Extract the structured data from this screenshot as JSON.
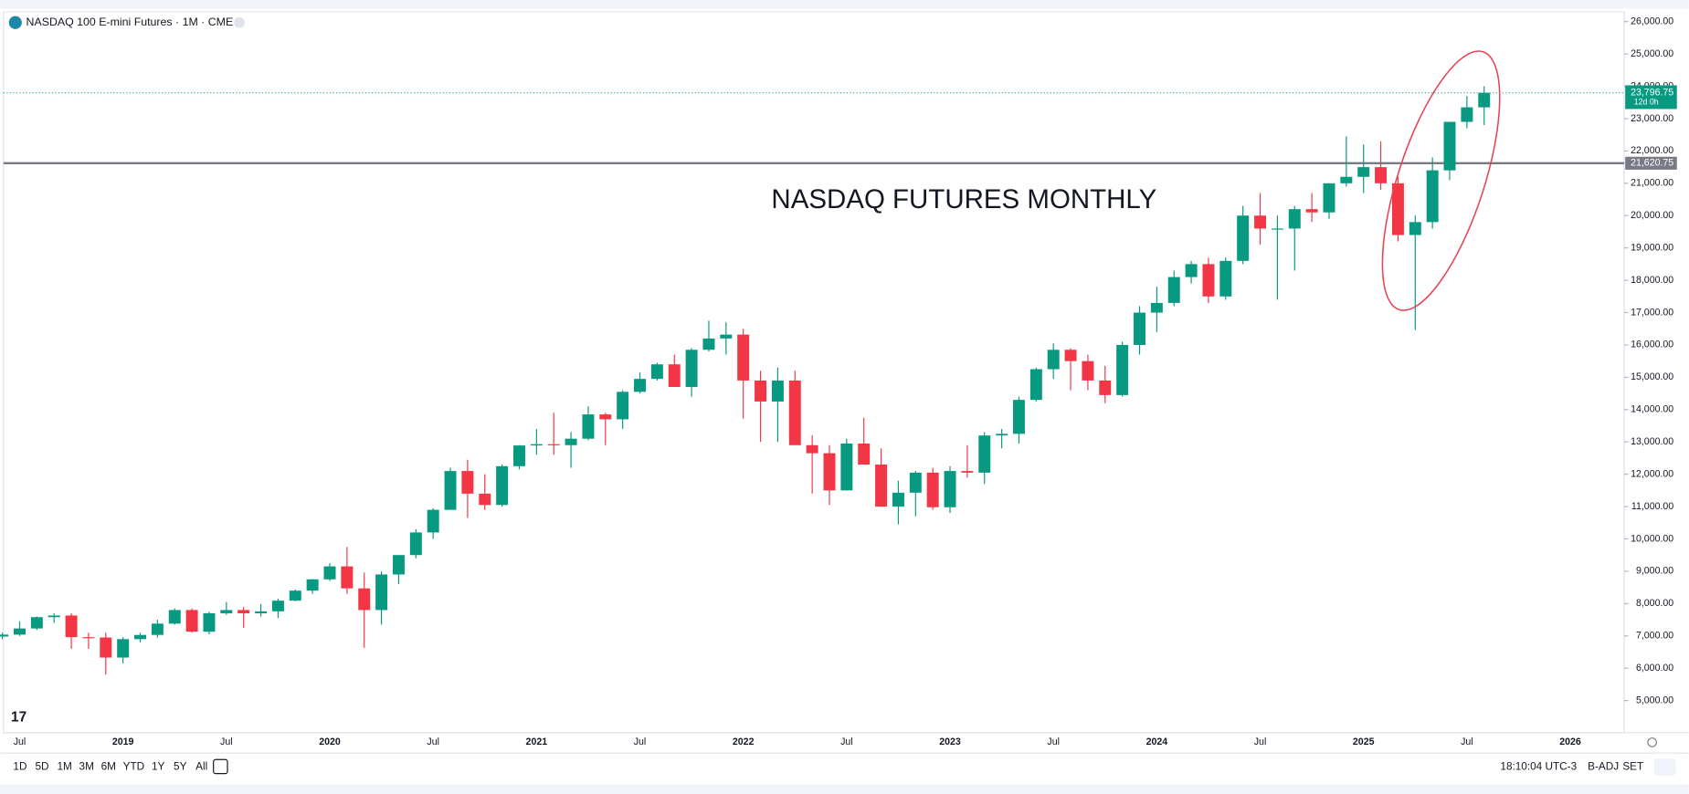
{
  "chart_data": {
    "type": "candlestick",
    "title": "NASDAQ 100 E-mini Futures · 1M · CME",
    "annotation": "NASDAQ FUTURES MONTHLY",
    "up_color": "#089981",
    "down_color": "#f23645",
    "categories": [
      null,
      "Jul",
      null,
      null,
      null,
      null,
      null,
      "2019",
      null,
      null,
      null,
      null,
      null,
      "Jul",
      null,
      null,
      null,
      null,
      null,
      "2020",
      null,
      null,
      null,
      null,
      null,
      "Jul",
      null,
      null,
      null,
      null,
      null,
      "2021",
      null,
      null,
      null,
      null,
      null,
      "Jul",
      null,
      null,
      null,
      null,
      null,
      "2022",
      null,
      null,
      null,
      null,
      null,
      "Jul",
      null,
      null,
      null,
      null,
      null,
      "2023",
      null,
      null,
      null,
      null,
      null,
      "Jul",
      null,
      null,
      null,
      null,
      null,
      "2024",
      null,
      null,
      null,
      null,
      null,
      "Jul",
      null,
      null,
      null,
      null,
      null,
      "2025",
      null,
      null,
      null,
      null,
      null,
      "Jul",
      null,
      null,
      null,
      null,
      null,
      "2026"
    ],
    "open": [
      6980,
      7040,
      7230,
      7580,
      7630,
      6960,
      6950,
      6330,
      6900,
      7030,
      7380,
      7800,
      7130,
      7700,
      7800,
      7700,
      7760,
      8090,
      8400,
      8750,
      9150,
      8470,
      7800,
      8900,
      9500,
      10200,
      10900,
      12100,
      11400,
      11050,
      12250,
      12890,
      12930,
      12900,
      13100,
      13850,
      13700,
      14550,
      14950,
      15400,
      14700,
      15850,
      16200,
      16320,
      14900,
      14250,
      14900,
      12900,
      12650,
      11500,
      12950,
      12300,
      11000,
      11430,
      12050,
      10980,
      12100,
      12050,
      13200,
      13250,
      14300,
      15250,
      15850,
      15500,
      14900,
      14450,
      16000,
      17000,
      17300,
      18100,
      18500,
      17500,
      18600,
      20000,
      19600,
      19600,
      20200,
      20100,
      21000,
      21200,
      21500,
      21000,
      19400,
      19800,
      21400,
      22900,
      23350,
      null,
      null,
      null,
      null,
      null
    ],
    "high": [
      7100,
      7450,
      7600,
      7700,
      7700,
      7100,
      7100,
      6960,
      7100,
      7500,
      7850,
      7850,
      7750,
      8050,
      7900,
      7990,
      8150,
      8430,
      8760,
      9250,
      9750,
      8960,
      9000,
      9500,
      10300,
      10950,
      12200,
      12450,
      12000,
      12300,
      12900,
      13400,
      13900,
      13300,
      14100,
      13900,
      14600,
      15150,
      15450,
      15700,
      15900,
      16750,
      16700,
      16500,
      15200,
      15300,
      15200,
      13200,
      12900,
      13100,
      13750,
      12800,
      11800,
      12100,
      12200,
      12250,
      12900,
      13300,
      13400,
      14400,
      15300,
      16050,
      15900,
      15700,
      15350,
      16100,
      17200,
      17800,
      18300,
      18600,
      18700,
      18700,
      20300,
      20700,
      20000,
      20300,
      20700,
      21000,
      22450,
      22200,
      22300,
      21200,
      20000,
      21800,
      22900,
      23700,
      24000,
      null,
      null,
      null,
      null,
      null
    ],
    "low": [
      6900,
      7000,
      7180,
      7400,
      6600,
      6600,
      5800,
      6150,
      6800,
      6950,
      7350,
      7100,
      7050,
      7650,
      7250,
      7600,
      7550,
      8070,
      8300,
      8700,
      8300,
      6630,
      7350,
      8600,
      9400,
      10000,
      10900,
      10650,
      10900,
      11000,
      12150,
      12600,
      12600,
      12200,
      13050,
      12900,
      13400,
      14500,
      14900,
      14700,
      14400,
      15800,
      15700,
      13720,
      13000,
      13000,
      12900,
      11400,
      11050,
      11500,
      12300,
      11000,
      10450,
      10700,
      10900,
      10800,
      11900,
      11700,
      12800,
      12950,
      14250,
      14950,
      14600,
      14600,
      14200,
      14400,
      15700,
      16400,
      17200,
      17900,
      17300,
      17400,
      18500,
      19100,
      17400,
      18300,
      19800,
      19900,
      20900,
      20700,
      20800,
      19200,
      16460,
      19600,
      21100,
      22700,
      22800,
      null,
      null,
      null,
      null,
      null
    ],
    "close": [
      7040,
      7230,
      7580,
      7630,
      6960,
      6950,
      6330,
      6900,
      7030,
      7380,
      7800,
      7130,
      7700,
      7800,
      7700,
      7760,
      8090,
      8400,
      8750,
      9150,
      8470,
      7800,
      8900,
      9500,
      10200,
      10900,
      12100,
      11400,
      11050,
      12250,
      12890,
      12930,
      12900,
      13100,
      13850,
      13700,
      14550,
      14950,
      15400,
      14700,
      15850,
      16200,
      16320,
      14900,
      14250,
      14900,
      12900,
      12650,
      11500,
      12950,
      12300,
      11000,
      11430,
      12050,
      10980,
      12100,
      12050,
      13200,
      13250,
      14300,
      15250,
      15850,
      15500,
      14900,
      14450,
      16000,
      17000,
      17300,
      18100,
      18500,
      17500,
      18600,
      20000,
      19600,
      19600,
      20200,
      20100,
      21000,
      21200,
      21500,
      21000,
      19400,
      19800,
      21400,
      22900,
      23350,
      23796.75,
      null,
      null,
      null,
      null,
      null
    ],
    "ylim": [
      4040,
      26270
    ],
    "yticks": [
      {
        "value": 5000,
        "label": "5,000.00"
      },
      {
        "value": 6000,
        "label": "6,000.00"
      },
      {
        "value": 7000,
        "label": "7,000.00"
      },
      {
        "value": 8000,
        "label": "8,000.00"
      },
      {
        "value": 9000,
        "label": "9,000.00"
      },
      {
        "value": 10000,
        "label": "10,000.00"
      },
      {
        "value": 11000,
        "label": "11,000.00"
      },
      {
        "value": 12000,
        "label": "12,000.00"
      },
      {
        "value": 13000,
        "label": "13,000.00"
      },
      {
        "value": 14000,
        "label": "14,000.00"
      },
      {
        "value": 15000,
        "label": "15,000.00"
      },
      {
        "value": 16000,
        "label": "16,000.00"
      },
      {
        "value": 17000,
        "label": "17,000.00"
      },
      {
        "value": 18000,
        "label": "18,000.00"
      },
      {
        "value": 19000,
        "label": "19,000.00"
      },
      {
        "value": 20000,
        "label": "20,000.00"
      },
      {
        "value": 21000,
        "label": "21,000.00"
      },
      {
        "value": 22000,
        "label": "22,000.00"
      },
      {
        "value": 23000,
        "label": "23,000.00"
      },
      {
        "value": 24000,
        "label": "24,000.00"
      },
      {
        "value": 25000,
        "label": "25,000.00"
      },
      {
        "value": 26000,
        "label": "26,000.00"
      }
    ],
    "horizontal_line": {
      "value": 21620.75,
      "label": "21,620.75"
    },
    "last_price": {
      "value": 23796.75,
      "label": "23,796.75",
      "countdown": "12d 0h"
    }
  },
  "toolbar": {
    "ranges": [
      "1D",
      "5D",
      "1M",
      "3M",
      "6M",
      "YTD",
      "1Y",
      "5Y",
      "All"
    ],
    "time": "18:10:04 UTC-3",
    "adjust": "B-ADJ",
    "session": "SET"
  }
}
